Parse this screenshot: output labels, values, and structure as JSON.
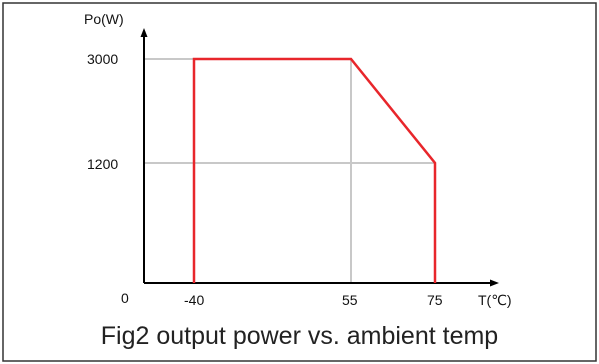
{
  "caption": "Fig2 output power vs. ambient temp",
  "colors": {
    "border": "#333333",
    "axis": "#000000",
    "grid": "#c8c8c8",
    "series": "#e8262b",
    "text": "#111111"
  },
  "chart_data": {
    "type": "line",
    "title": "Fig2 output power vs. ambient temp",
    "xlabel": "T(℃)",
    "ylabel": "Po(W)",
    "origin_label": "0",
    "x_ticks": [
      "-40",
      "55",
      "75"
    ],
    "y_ticks": [
      "1200",
      "3000"
    ],
    "xlim": [
      -40,
      75
    ],
    "ylim": [
      0,
      3000
    ],
    "grid": true,
    "series": [
      {
        "x": [
          -40,
          -40,
          55,
          75,
          75
        ],
        "y": [
          0,
          3000,
          3000,
          1200,
          0
        ]
      }
    ],
    "guides": [
      {
        "kind": "horizontal",
        "y": 3000,
        "from_x": -40,
        "to_x": 55
      },
      {
        "kind": "horizontal",
        "y": 1200,
        "from_x": -40,
        "to_x": 75
      },
      {
        "kind": "vertical",
        "x": 55,
        "from_y": 0,
        "to_y": 3000
      }
    ]
  }
}
